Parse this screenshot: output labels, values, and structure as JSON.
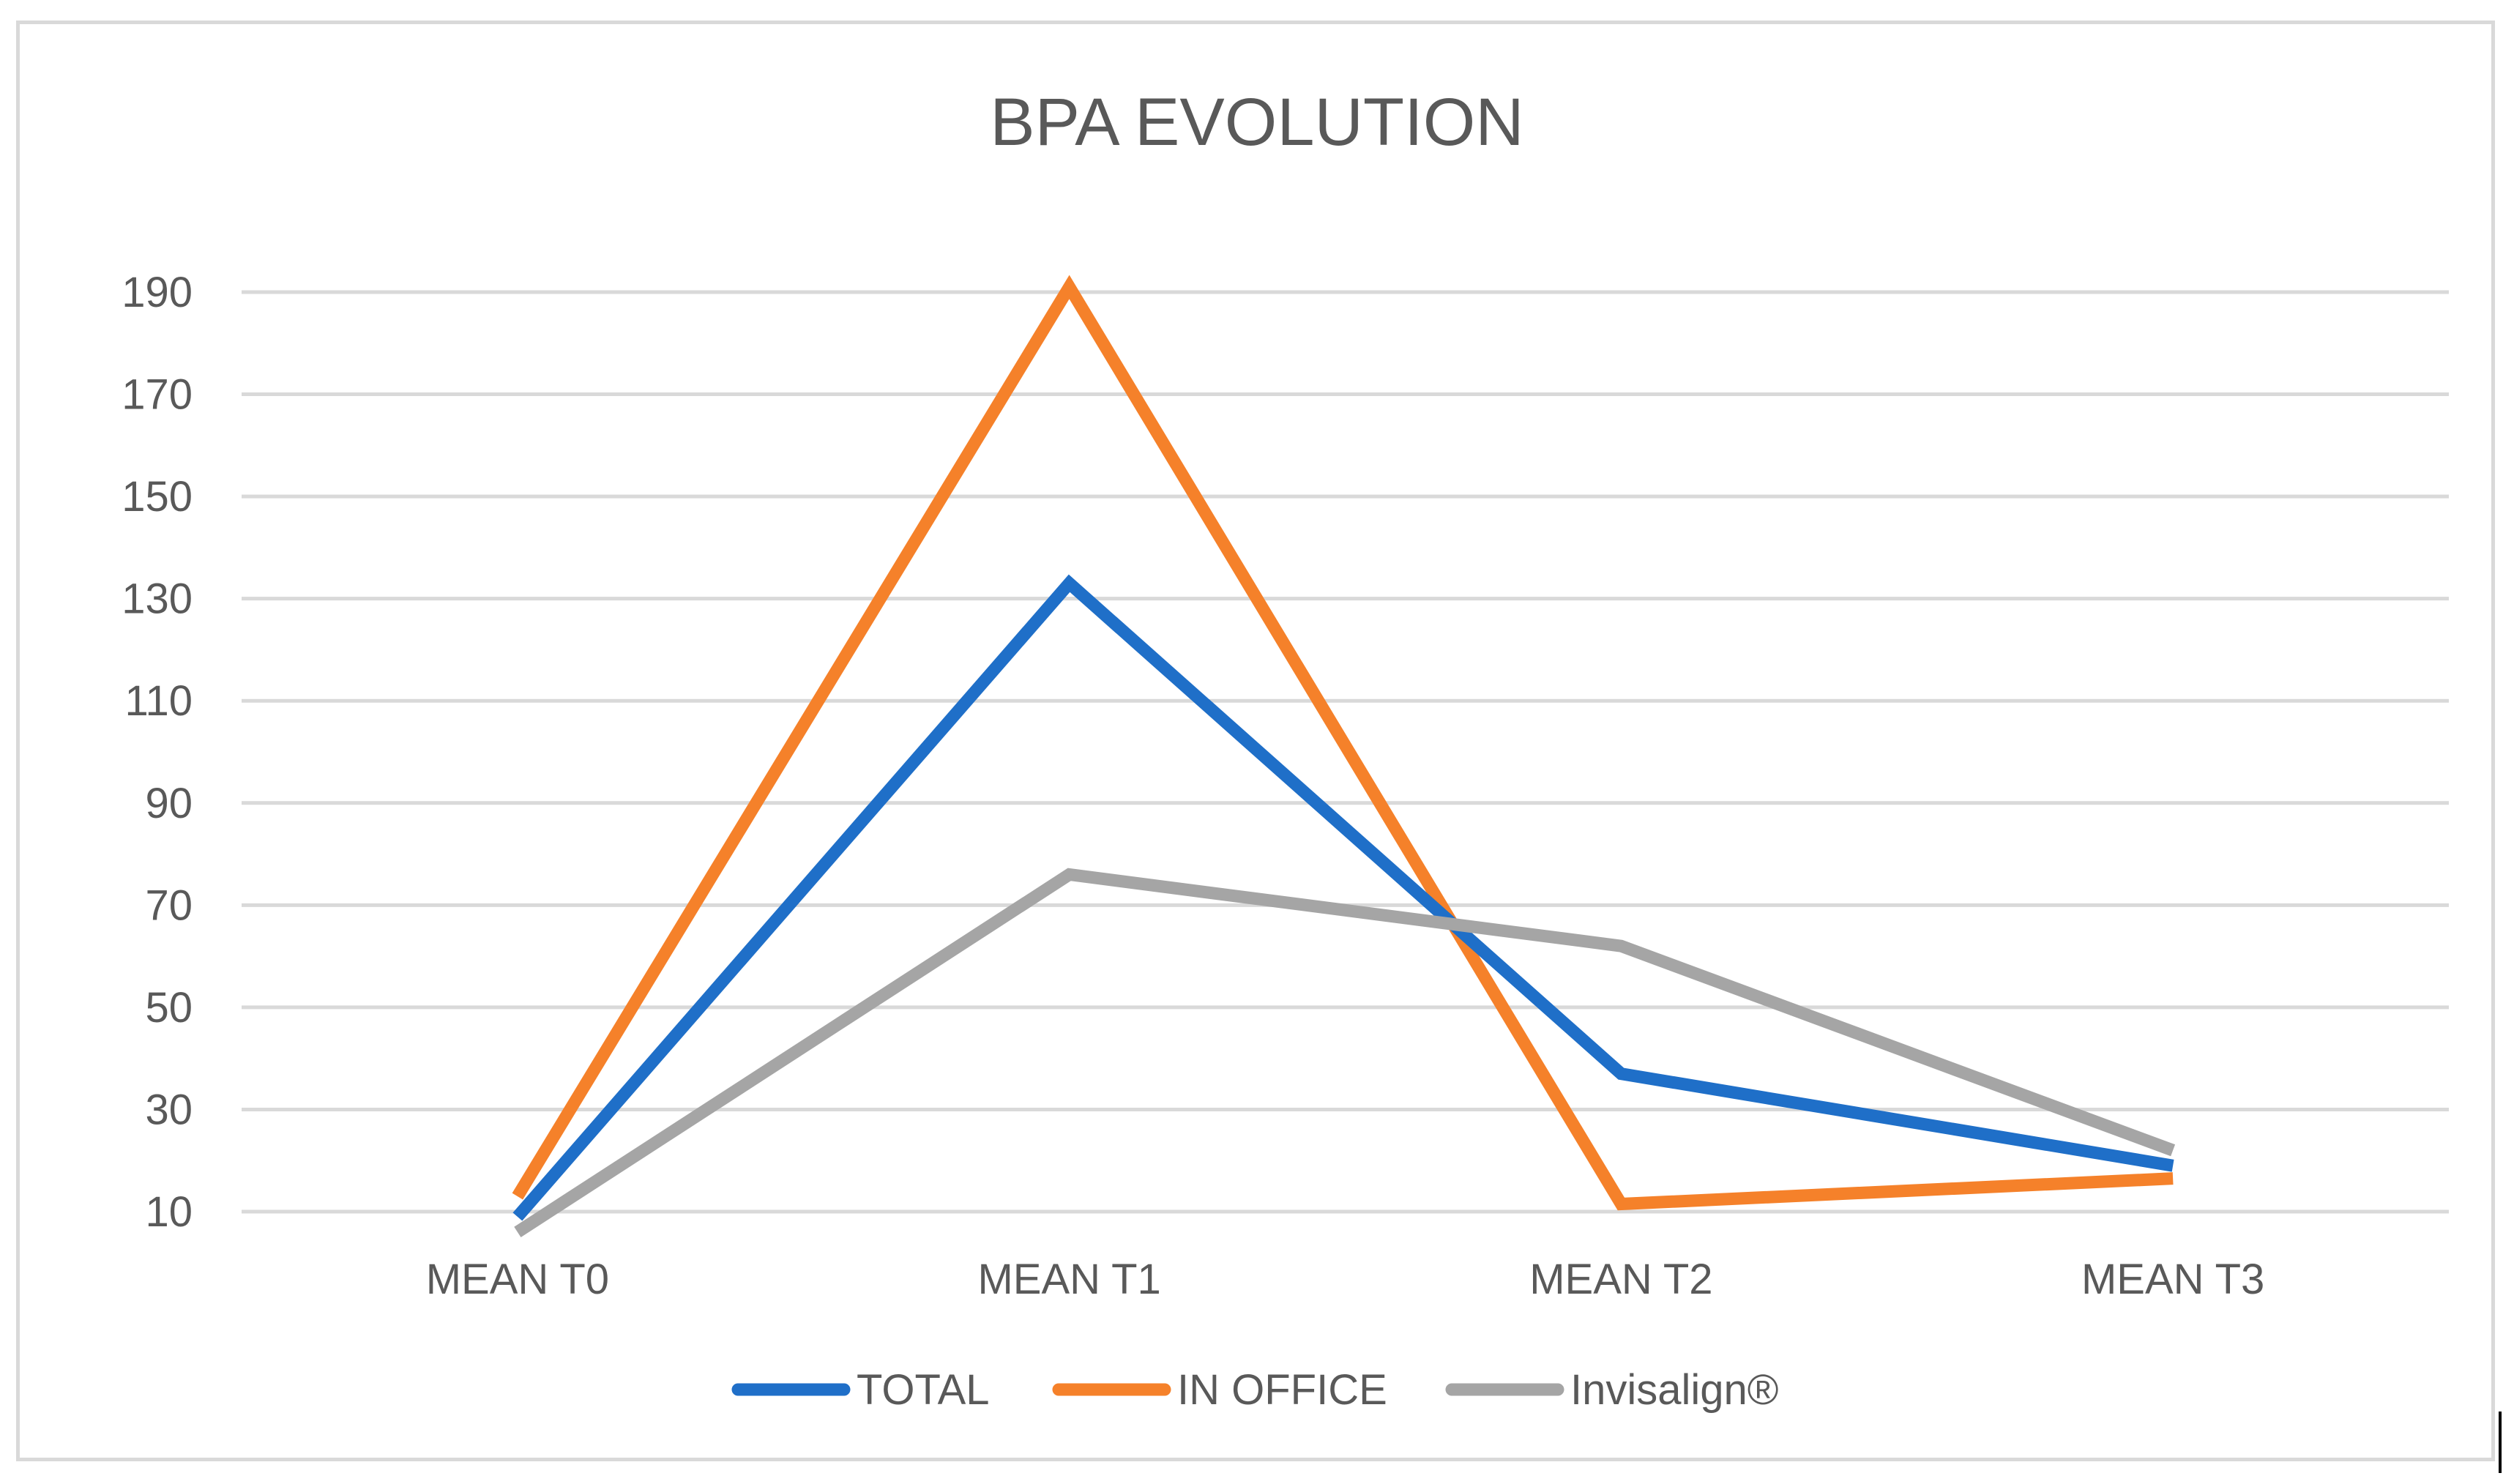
{
  "chart_data": {
    "type": "line",
    "title": "BPA EVOLUTION",
    "xlabel": "",
    "ylabel": "",
    "categories": [
      "MEAN T0",
      "MEAN T1",
      "MEAN T2",
      "MEAN T3"
    ],
    "yticks": [
      10,
      30,
      50,
      70,
      90,
      110,
      130,
      150,
      170,
      190
    ],
    "ylim": [
      10,
      190
    ],
    "grid": true,
    "legend_position": "bottom",
    "series": [
      {
        "name": "TOTAL",
        "color": "#1f6fc8",
        "values": [
          9,
          133,
          37,
          19
        ]
      },
      {
        "name": "IN OFFICE",
        "color": "#f5812a",
        "values": [
          13,
          191,
          11.5,
          16.5
        ]
      },
      {
        "name": "Invisalign®",
        "color": "#a5a5a5",
        "values": [
          6,
          76,
          62,
          22
        ]
      }
    ]
  }
}
